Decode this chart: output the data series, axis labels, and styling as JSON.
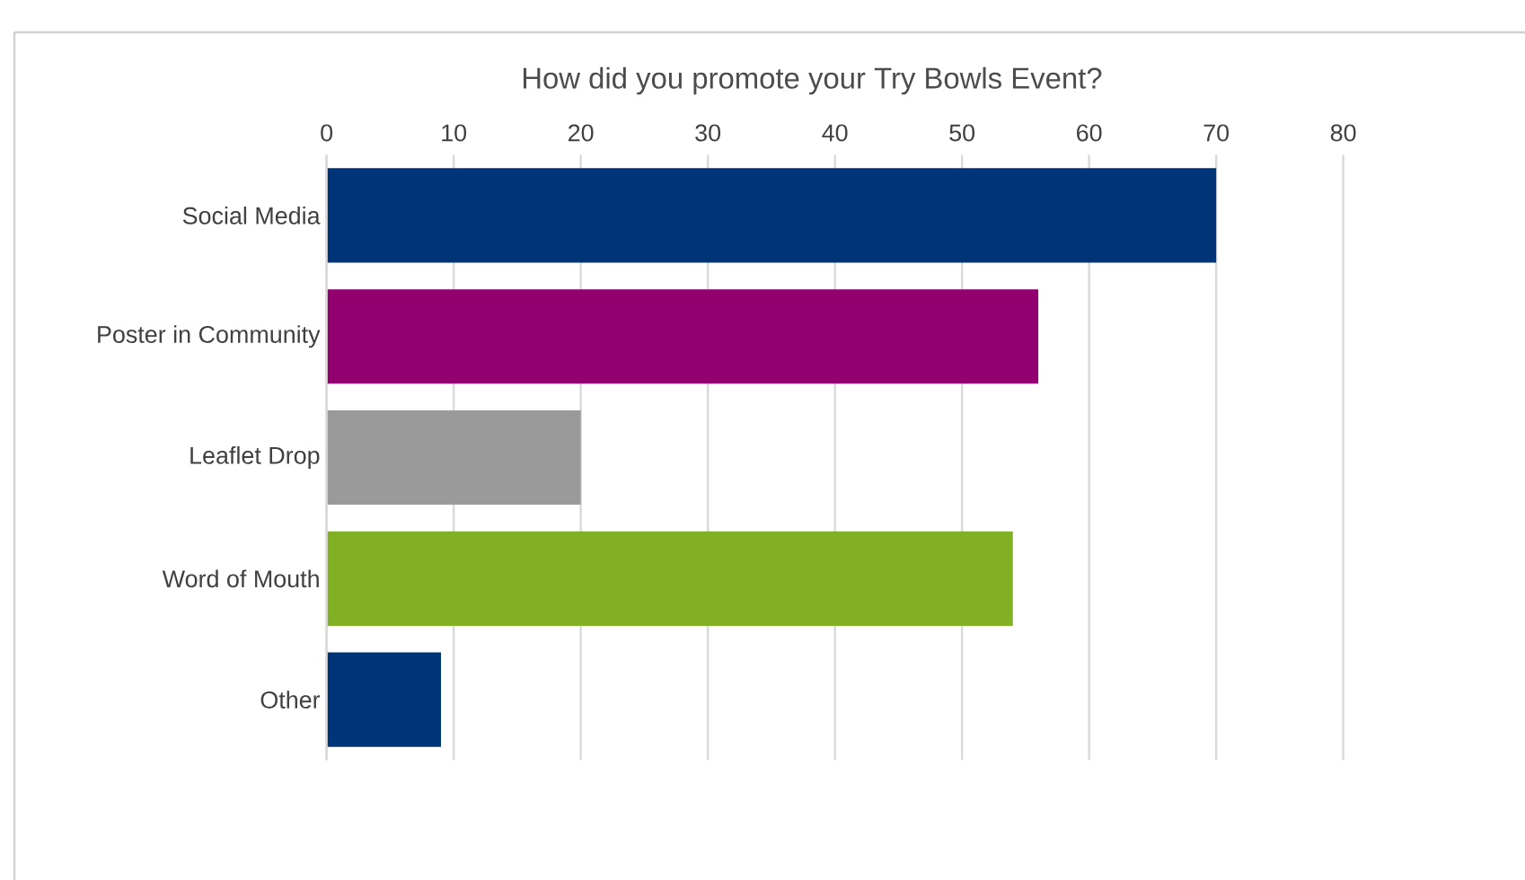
{
  "chart_data": {
    "type": "bar",
    "orientation": "horizontal",
    "title": "How did you promote your Try Bowls Event?",
    "categories": [
      "Social Media",
      "Poster in Community",
      "Leaflet Drop",
      "Word of Mouth",
      "Other"
    ],
    "values": [
      70,
      56,
      20,
      54,
      9
    ],
    "colors": [
      "#003478",
      "#93006f",
      "#9a9a9a",
      "#82b024",
      "#003478"
    ],
    "xlim": [
      0,
      80
    ],
    "xticks": [
      0,
      10,
      20,
      30,
      40,
      50,
      60,
      70,
      80
    ],
    "grid": "x"
  }
}
